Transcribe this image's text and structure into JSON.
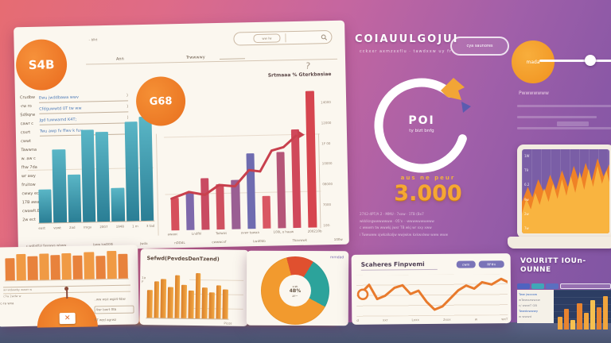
{
  "colors": {
    "accent_orange": "#f08030",
    "teal": "#2f8ba0",
    "red": "#d64f5c",
    "purple_bar": "#7e68ab",
    "big_number": "#f5a733",
    "bottom_bar": "#4e5a7d"
  },
  "main_card": {
    "logo_text": "S4B",
    "search": {
      "left_label": "– blkt",
      "segment_label": "ww lw"
    },
    "nav": [
      "Ann",
      "Trwwwwy"
    ],
    "help_glyph": "?",
    "badge_text": "G68",
    "sidebar_items": [
      "Crudbw",
      "-rw ro",
      "Sd9qrw",
      "cawr c",
      "csxrt",
      "cwwt",
      "Tawwna",
      "w. aw c",
      "fhw 7da",
      "wr awy",
      "fruitow",
      "cwwy ecd",
      "17B awa",
      "cwawlt.B",
      "2w ect"
    ],
    "form_rows": [
      "Ewu jwddbawa wwv",
      "Cfdguwwtd 0T tw ww",
      "Jgd tuwwamd K4T;",
      "Twu awp fv ffwv k fuv"
    ],
    "teal_chart": {
      "color": "linear-gradient(180deg,#5ab6c6,#2a7e95)",
      "values": [
        28,
        62,
        40,
        78,
        76,
        28,
        84,
        88
      ],
      "labels": [
        "east",
        "vowt",
        "2ad",
        "rmgv",
        "2007",
        "1948",
        "1 m",
        "3 tad"
      ]
    },
    "mid_chart": {
      "title": "Srtmaaa % Gterkbasiae",
      "values": [
        24,
        28,
        38,
        33,
        36,
        55,
        24,
        56,
        72,
        100
      ],
      "colors": [
        "#d64f5c",
        "#7e68ab",
        "#c94b62",
        "#cf5160",
        "#9a5f93",
        "#6f6cb0",
        "#d95763",
        "#b55577",
        "#d0485a",
        "#d6454f"
      ],
      "line": {
        "color": "#c8404d",
        "width": 3,
        "arrow": true,
        "points": [
          [
            6,
            132
          ],
          [
            28,
            124
          ],
          [
            48,
            128
          ],
          [
            66,
            116
          ],
          [
            86,
            118
          ],
          [
            104,
            98
          ],
          [
            118,
            100
          ],
          [
            133,
            74
          ],
          [
            148,
            70
          ],
          [
            164,
            56
          ]
        ]
      },
      "y_labels": [
        "14000",
        "12000",
        "1F 00",
        "10000",
        "08000",
        "7000",
        "100-"
      ],
      "x_labels": [
        "awaoc",
        "Lndfhl",
        "Tazwas",
        "ovwr tawaa",
        "100L o haaw",
        "200210b"
      ]
    },
    "footer_segments": [
      "c.wdbkfLV fwvwws wbww",
      "bww kwD00i",
      "Jwda",
      "nDDdL",
      "cwwwcxf",
      "Lwd0bb",
      "Tbavwwk",
      "100w"
    ]
  },
  "hero": {
    "title": "COIAUULGOJUI",
    "subtitle": "cckxxr axmzxxflu · tawdxxw uy fr",
    "button_label": "cya saunores",
    "ring_value": "POI",
    "ring_sub": "ty bizt bnfg",
    "ring_tag": "O₁",
    "stat_label": "aus ne peur",
    "stat_value": "3.000",
    "fine_print": [
      "27X2-4PT/A 2 · MMU · 7xxw · 1TB (Bx7",
      "wkklkngwwwwwww · 05'x · -wwwwwwwwww",
      "c wwwm tw wwwkj jwxr TB wkj wr xxy xww",
      "i Twwwww xjwkalkaljw wwjwkw kxkwxlww www www"
    ]
  },
  "widget": {
    "circle_label": "mada",
    "panel_label": "Pwwwwwww"
  },
  "laptop": {
    "y_labels": [
      "1W",
      "T9",
      "6.2",
      "9w",
      "2w",
      "7w"
    ],
    "area_back": {
      "fill": "#ef8226",
      "points": [
        [
          0,
          70
        ],
        [
          8,
          50
        ],
        [
          14,
          64
        ],
        [
          22,
          40
        ],
        [
          30,
          58
        ],
        [
          38,
          34
        ],
        [
          46,
          54
        ],
        [
          54,
          28
        ],
        [
          62,
          50
        ],
        [
          70,
          22
        ],
        [
          78,
          46
        ],
        [
          86,
          18
        ],
        [
          94,
          42
        ],
        [
          102,
          12
        ],
        [
          110,
          36
        ],
        [
          118,
          20
        ]
      ]
    },
    "area_front": {
      "fill": "#f9b440",
      "points": [
        [
          0,
          86
        ],
        [
          6,
          66
        ],
        [
          12,
          80
        ],
        [
          18,
          58
        ],
        [
          24,
          74
        ],
        [
          30,
          52
        ],
        [
          36,
          70
        ],
        [
          42,
          46
        ],
        [
          48,
          66
        ],
        [
          54,
          40
        ],
        [
          60,
          62
        ],
        [
          66,
          36
        ],
        [
          72,
          58
        ],
        [
          78,
          30
        ],
        [
          84,
          54
        ],
        [
          90,
          26
        ],
        [
          96,
          50
        ],
        [
          102,
          22
        ],
        [
          108,
          46
        ],
        [
          114,
          28
        ],
        [
          118,
          44
        ]
      ]
    }
  },
  "card_a": {
    "bars": {
      "colors": [
        "#e8823c",
        "#f09a44"
      ],
      "values": [
        24,
        28,
        26,
        28,
        27,
        28,
        26,
        29,
        25,
        30,
        27
      ]
    },
    "rule1": "w=wdwwby wwwr w",
    "rule2": "c7w   2wdw   w",
    "left_label": "c-ra wxa",
    "right_labels": [
      "..ww wyz wgz4 6bw",
      "4wr bwrt 0tb",
      "PT wzd agrwz"
    ],
    "gauge_icon": "✕"
  },
  "card_b": {
    "title": "Sefwd(PevdesDenTzend)",
    "bars": {
      "color": "linear-gradient(90deg,#d97f2a,#f2a845)",
      "values": [
        40,
        52,
        56,
        45,
        62,
        48,
        40,
        65,
        45,
        38,
        48,
        42
      ]
    },
    "axis_left": [
      "1a",
      "F"
    ],
    "axis_note": "Picos"
  },
  "card_c": {
    "corner_label": "mmdad",
    "donut": {
      "from": -15,
      "slices": [
        {
          "color": "#e0502f",
          "pct": 13
        },
        {
          "color": "#2ca39b",
          "pct": 24
        },
        {
          "color": "#f29a2e",
          "pct": 63
        }
      ]
    },
    "center_lines": [
      "=w.",
      "4B%",
      "zr~"
    ]
  },
  "card_d": {
    "title": "Scaheres Finpvemi",
    "pills": [
      "cwm",
      "RF#x"
    ],
    "line": {
      "color": "#e87a2c",
      "width": 3,
      "marker": [
        8,
        24,
        6
      ],
      "points": [
        [
          6,
          22
        ],
        [
          16,
          12
        ],
        [
          26,
          30
        ],
        [
          36,
          26
        ],
        [
          48,
          16
        ],
        [
          58,
          13
        ],
        [
          68,
          24
        ],
        [
          78,
          20
        ],
        [
          88,
          34
        ],
        [
          98,
          44
        ],
        [
          108,
          40
        ],
        [
          118,
          30
        ],
        [
          128,
          20
        ],
        [
          138,
          14
        ],
        [
          148,
          18
        ],
        [
          158,
          10
        ],
        [
          170,
          13
        ],
        [
          182,
          6
        ],
        [
          190,
          10
        ]
      ]
    },
    "x_labels": [
      "d",
      "xxr",
      "Lxxx",
      "2xxx",
      "w",
      "wxT"
    ]
  },
  "card_e": {
    "title": "VOURITT IOUn-OUNNE",
    "panel_rows": [
      "Tww jwxxxw",
      "wTwwxzwwxw",
      "c/ wwwT GB",
      "Twwdxwwwy",
      "w wwwd"
    ],
    "bars": {
      "colors": [
        "#f2a53c",
        "#e8832f",
        "#f6c050",
        "#e8832f",
        "#f2a53c",
        "#f6c050",
        "#e8832f",
        "#f2a53c"
      ],
      "values": [
        14,
        22,
        10,
        28,
        18,
        32,
        24,
        36
      ]
    }
  }
}
